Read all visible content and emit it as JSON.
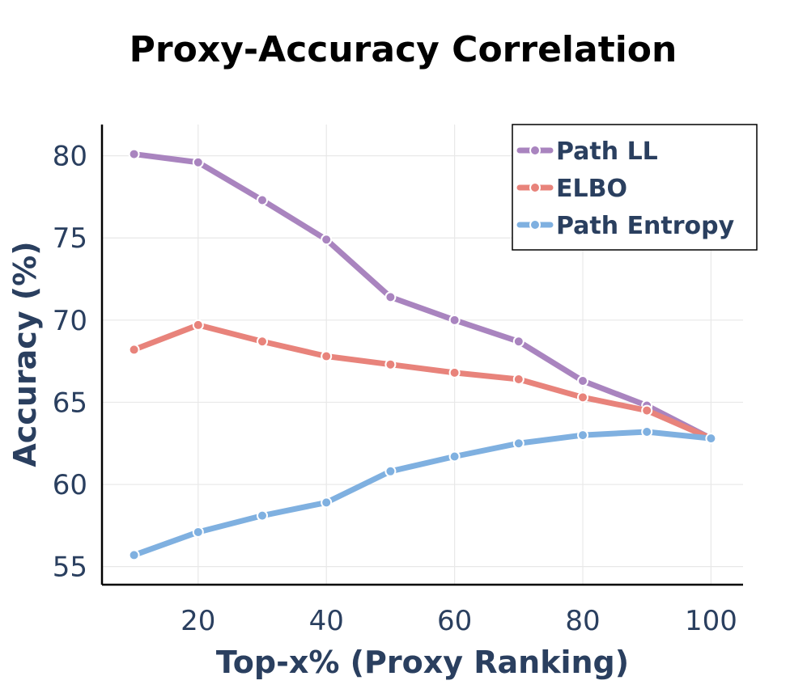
{
  "chart_data": {
    "type": "line",
    "title": "Proxy-Accuracy Correlation",
    "xlabel": "Top-x% (Proxy Ranking)",
    "ylabel": "Accuracy (%)",
    "x": [
      10,
      20,
      30,
      40,
      50,
      60,
      70,
      80,
      90,
      100
    ],
    "xlim": [
      5,
      105
    ],
    "ylim": [
      53.9,
      81.9
    ],
    "xticks": [
      20,
      40,
      60,
      80,
      100
    ],
    "yticks": [
      55,
      60,
      65,
      70,
      75,
      80
    ],
    "xtick_labels": [
      "20",
      "40",
      "60",
      "80",
      "100"
    ],
    "ytick_labels": [
      "55",
      "60",
      "65",
      "70",
      "75",
      "80"
    ],
    "grid": true,
    "legend_position": "top-right",
    "series": [
      {
        "name": "Path LL",
        "color": "#a984bf",
        "values": [
          80.1,
          79.6,
          77.3,
          74.9,
          71.4,
          70.0,
          68.7,
          66.3,
          64.8,
          62.8
        ]
      },
      {
        "name": "ELBO",
        "color": "#e8837b",
        "values": [
          68.2,
          69.7,
          68.7,
          67.8,
          67.3,
          66.8,
          66.4,
          65.3,
          64.5,
          62.8
        ]
      },
      {
        "name": "Path Entropy",
        "color": "#7fb0e0",
        "values": [
          55.7,
          57.1,
          58.1,
          58.9,
          60.8,
          61.7,
          62.5,
          63.0,
          63.2,
          62.8
        ]
      }
    ]
  }
}
